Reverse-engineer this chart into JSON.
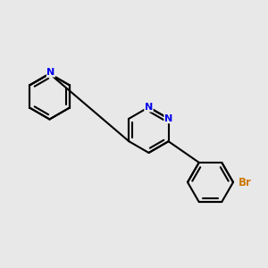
{
  "background_color": "#e8e8e8",
  "bond_color": "#000000",
  "nitrogen_color": "#0000ee",
  "bromine_color": "#cc7700",
  "bond_width": 1.5,
  "dbo": 0.13,
  "figsize": [
    3.0,
    3.0
  ],
  "dpi": 100,
  "xlim": [
    0,
    10
  ],
  "ylim": [
    0,
    10
  ]
}
